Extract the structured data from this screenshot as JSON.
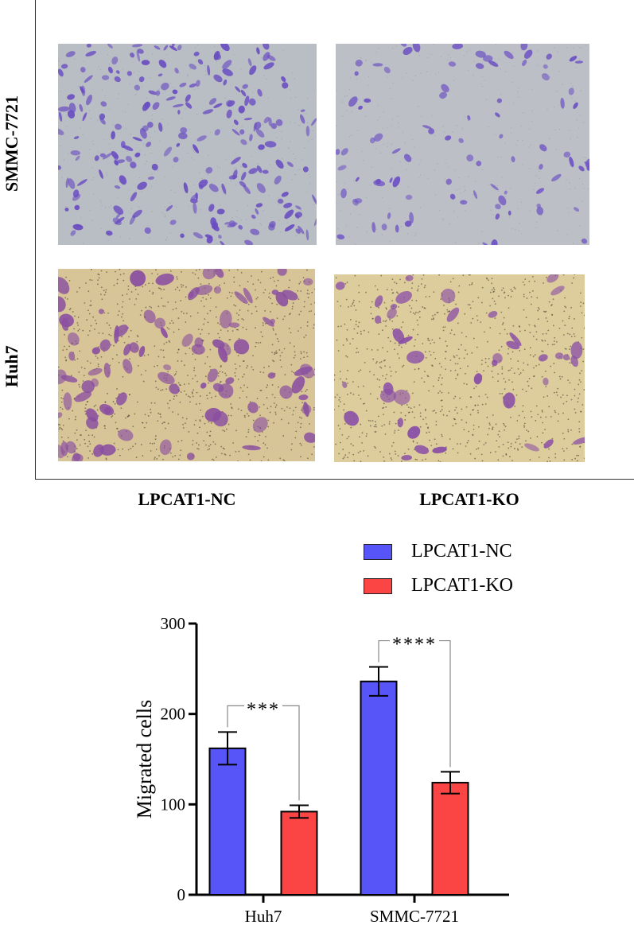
{
  "micrographs": {
    "row_labels": [
      "SMMC-7721",
      "Huh7"
    ],
    "column_labels": [
      "LPCAT1-NC",
      "LPCAT1-KO"
    ],
    "panels": [
      {
        "row": "SMMC-7721",
        "column": "LPCAT1-NC",
        "background": "#b9bdc4",
        "cell_color": "#6a4ec2",
        "cell_density": "high"
      },
      {
        "row": "SMMC-7721",
        "column": "LPCAT1-KO",
        "background": "#bcc0c6",
        "cell_color": "#6e52c4",
        "cell_density": "low"
      },
      {
        "row": "Huh7",
        "column": "LPCAT1-NC",
        "background": "#d8c597",
        "cell_color": "#8a4fa0",
        "cell_density": "high"
      },
      {
        "row": "Huh7",
        "column": "LPCAT1-KO",
        "background": "#ddcc9c",
        "cell_color": "#8a4fa6",
        "cell_density": "low"
      }
    ]
  },
  "chart_data": {
    "type": "bar",
    "categories": [
      "Huh7",
      "SMMC-7721"
    ],
    "series": [
      {
        "name": "LPCAT1-NC",
        "color": "#5755f7",
        "values": [
          162,
          236
        ],
        "errors": [
          18,
          16
        ]
      },
      {
        "name": "LPCAT1-KO",
        "color": "#fb4545",
        "values": [
          92,
          124
        ],
        "errors": [
          7,
          12
        ]
      }
    ],
    "ylabel": "Migrated cells",
    "xlabel": "",
    "ylim": [
      0,
      300
    ],
    "yticks": [
      0,
      100,
      200,
      300
    ],
    "legend_position": "top",
    "significance": [
      {
        "category": "Huh7",
        "label": "***"
      },
      {
        "category": "SMMC-7721",
        "label": "****"
      }
    ]
  }
}
